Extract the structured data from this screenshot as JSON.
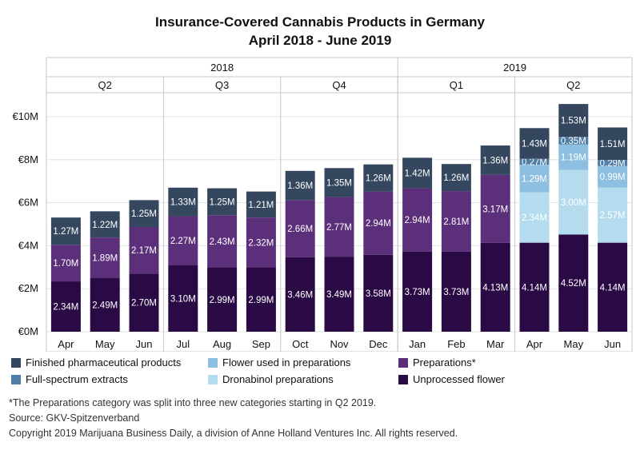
{
  "chart_data": {
    "type": "bar",
    "stacked": true,
    "title": "Insurance-Covered Cannabis Products in Germany",
    "subtitle": "April 2018 - June 2019",
    "categories": [
      "Apr",
      "May",
      "Jun",
      "Jul",
      "Aug",
      "Sep",
      "Oct",
      "Nov",
      "Dec",
      "Jan",
      "Feb",
      "Mar",
      "Apr",
      "May",
      "Jun"
    ],
    "years": [
      {
        "label": "2018",
        "months": 9
      },
      {
        "label": "2019",
        "months": 6
      }
    ],
    "quarters": [
      {
        "label": "Q2",
        "months": 3
      },
      {
        "label": "Q3",
        "months": 3
      },
      {
        "label": "Q4",
        "months": 3
      },
      {
        "label": "Q1",
        "months": 3
      },
      {
        "label": "Q2",
        "months": 3
      }
    ],
    "yticks": [
      {
        "value": 0,
        "label": "€0M"
      },
      {
        "value": 2,
        "label": "€2M"
      },
      {
        "value": 4,
        "label": "€4M"
      },
      {
        "value": 6,
        "label": "€6M"
      },
      {
        "value": 8,
        "label": "€8M"
      },
      {
        "value": 10,
        "label": "€10M"
      }
    ],
    "ylim": [
      0,
      11
    ],
    "unit": "M",
    "series": [
      {
        "name": "Unprocessed flower",
        "color": "#2a0a45",
        "values": [
          2.34,
          2.49,
          2.7,
          3.1,
          2.99,
          2.99,
          3.46,
          3.49,
          3.58,
          3.73,
          3.73,
          4.13,
          4.14,
          4.52,
          4.14
        ]
      },
      {
        "name": "Preparations*",
        "color": "#5b2f79",
        "values": [
          1.7,
          1.89,
          2.17,
          2.27,
          2.43,
          2.32,
          2.66,
          2.77,
          2.94,
          2.94,
          2.81,
          3.17,
          null,
          null,
          null
        ]
      },
      {
        "name": "Dronabinol preparations",
        "color": "#b5dbee",
        "values": [
          null,
          null,
          null,
          null,
          null,
          null,
          null,
          null,
          null,
          null,
          null,
          null,
          2.34,
          3.0,
          2.57
        ]
      },
      {
        "name": "Flower used in preparations",
        "color": "#8cbfe0",
        "values": [
          null,
          null,
          null,
          null,
          null,
          null,
          null,
          null,
          null,
          null,
          null,
          null,
          1.29,
          1.19,
          0.99
        ]
      },
      {
        "name": "Full-spectrum extracts",
        "color": "#4f7da6",
        "values": [
          null,
          null,
          null,
          null,
          null,
          null,
          null,
          null,
          null,
          null,
          null,
          null,
          0.27,
          0.35,
          0.29
        ]
      },
      {
        "name": "Finished pharmaceutical products",
        "color": "#34475e",
        "values": [
          1.27,
          1.22,
          1.25,
          1.33,
          1.25,
          1.21,
          1.36,
          1.35,
          1.26,
          1.42,
          1.26,
          1.36,
          1.43,
          1.53,
          1.51
        ]
      }
    ],
    "legend_position": "bottom",
    "legend": [
      {
        "name": "Finished pharmaceutical products",
        "color": "#34475e"
      },
      {
        "name": "Flower used in preparations",
        "color": "#8cbfe0"
      },
      {
        "name": "Preparations*",
        "color": "#5b2f79"
      },
      {
        "name": "Full-spectrum extracts",
        "color": "#4f7da6"
      },
      {
        "name": "Dronabinol preparations",
        "color": "#b5dbee"
      },
      {
        "name": "Unprocessed flower",
        "color": "#2a0a45"
      }
    ],
    "grid": true
  },
  "footnotes": {
    "note": "*The Preparations category was split into three new categories starting in Q2 2019.",
    "source": "Source: GKV-Spitzenverband",
    "copyright": "Copyright 2019 Marijuana Business Daily, a division of Anne Holland Ventures Inc. All rights reserved."
  }
}
